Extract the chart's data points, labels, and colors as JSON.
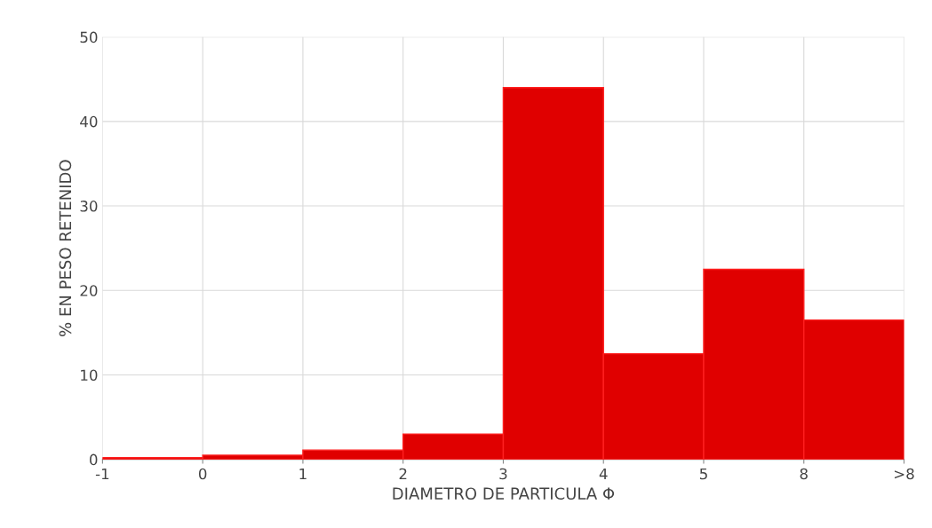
{
  "chart_data": {
    "type": "bar",
    "xlabel": "DIAMETRO DE PARTICULA Φ",
    "ylabel": "% EN PESO RETENIDO",
    "categories": [
      "-1",
      "0",
      "1",
      "2",
      "3",
      "4",
      "5",
      "8",
      ">8"
    ],
    "values": [
      0.2,
      0.5,
      1.1,
      3,
      44,
      12.5,
      22.5,
      16.5,
      null
    ],
    "color": "#e00000",
    "ylim": [
      0,
      50
    ],
    "yticks": [
      0,
      10,
      20,
      30,
      40,
      50
    ],
    "grid": true
  }
}
